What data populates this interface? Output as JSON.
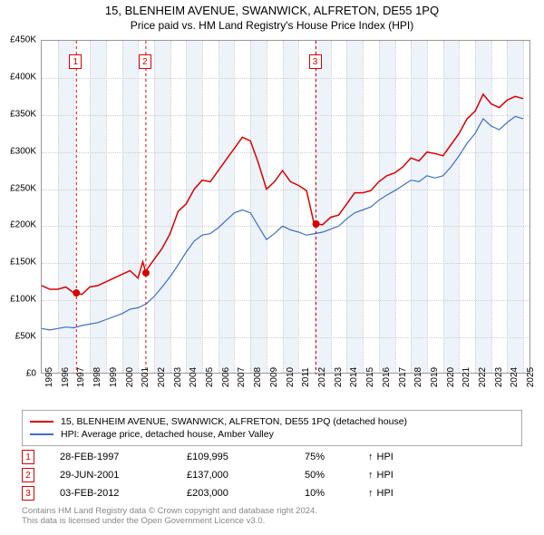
{
  "title": {
    "line1": "15, BLENHEIM AVENUE, SWANWICK, ALFRETON, DE55 1PQ",
    "line2": "Price paid vs. HM Land Registry's House Price Index (HPI)"
  },
  "chart": {
    "type": "line",
    "background_color": "#ffffff",
    "band_color": "#eef3fa",
    "grid_color": "#cccccc",
    "border_color": "#999999",
    "x_years": [
      1995,
      1996,
      1997,
      1998,
      1999,
      2000,
      2001,
      2002,
      2003,
      2004,
      2005,
      2006,
      2007,
      2008,
      2009,
      2010,
      2011,
      2012,
      2013,
      2014,
      2015,
      2016,
      2017,
      2018,
      2019,
      2020,
      2021,
      2022,
      2023,
      2024,
      2025
    ],
    "xlim": [
      1995,
      2025.5
    ],
    "ylim": [
      0,
      450000
    ],
    "ytick_step": 50000,
    "ytick_labels": [
      "£0",
      "£50K",
      "£100K",
      "£150K",
      "£200K",
      "£250K",
      "£300K",
      "£350K",
      "£400K",
      "£450K"
    ],
    "xtick_rotation": -90,
    "tick_fontsize": 10,
    "series": [
      {
        "id": "property",
        "label": "15, BLENHEIM AVENUE, SWANWICK, ALFRETON, DE55 1PQ (detached house)",
        "color": "#d90000",
        "line_width": 1.5,
        "data": [
          [
            1995,
            120000
          ],
          [
            1995.5,
            115000
          ],
          [
            1996,
            115000
          ],
          [
            1996.5,
            118000
          ],
          [
            1997,
            110000
          ],
          [
            1997.16,
            109995
          ],
          [
            1997.5,
            108000
          ],
          [
            1998,
            118000
          ],
          [
            1998.5,
            120000
          ],
          [
            1999,
            125000
          ],
          [
            1999.5,
            130000
          ],
          [
            2000,
            135000
          ],
          [
            2000.5,
            140000
          ],
          [
            2001,
            130000
          ],
          [
            2001.3,
            152000
          ],
          [
            2001.49,
            137000
          ],
          [
            2001.5,
            140000
          ],
          [
            2002,
            155000
          ],
          [
            2002.5,
            170000
          ],
          [
            2003,
            190000
          ],
          [
            2003.5,
            220000
          ],
          [
            2004,
            230000
          ],
          [
            2004.5,
            250000
          ],
          [
            2005,
            262000
          ],
          [
            2005.5,
            260000
          ],
          [
            2006,
            275000
          ],
          [
            2006.5,
            290000
          ],
          [
            2007,
            305000
          ],
          [
            2007.5,
            320000
          ],
          [
            2008,
            315000
          ],
          [
            2008.5,
            285000
          ],
          [
            2009,
            250000
          ],
          [
            2009.5,
            260000
          ],
          [
            2010,
            275000
          ],
          [
            2010.5,
            260000
          ],
          [
            2011,
            255000
          ],
          [
            2011.5,
            248000
          ],
          [
            2012,
            200000
          ],
          [
            2012.09,
            203000
          ],
          [
            2012.5,
            202000
          ],
          [
            2013,
            212000
          ],
          [
            2013.5,
            215000
          ],
          [
            2014,
            230000
          ],
          [
            2014.5,
            245000
          ],
          [
            2015,
            245000
          ],
          [
            2015.5,
            248000
          ],
          [
            2016,
            260000
          ],
          [
            2016.5,
            268000
          ],
          [
            2017,
            272000
          ],
          [
            2017.5,
            280000
          ],
          [
            2018,
            292000
          ],
          [
            2018.5,
            288000
          ],
          [
            2019,
            300000
          ],
          [
            2019.5,
            298000
          ],
          [
            2020,
            295000
          ],
          [
            2020.5,
            310000
          ],
          [
            2021,
            325000
          ],
          [
            2021.5,
            345000
          ],
          [
            2022,
            355000
          ],
          [
            2022.5,
            378000
          ],
          [
            2023,
            365000
          ],
          [
            2023.5,
            360000
          ],
          [
            2024,
            370000
          ],
          [
            2024.5,
            375000
          ],
          [
            2025,
            372000
          ]
        ]
      },
      {
        "id": "hpi",
        "label": "HPI: Average price, detached house, Amber Valley",
        "color": "#3b6fc9",
        "line_width": 1.2,
        "data": [
          [
            1995,
            62000
          ],
          [
            1995.5,
            60000
          ],
          [
            1996,
            62000
          ],
          [
            1996.5,
            64000
          ],
          [
            1997,
            63000
          ],
          [
            1997.5,
            66000
          ],
          [
            1998,
            68000
          ],
          [
            1998.5,
            70000
          ],
          [
            1999,
            74000
          ],
          [
            1999.5,
            78000
          ],
          [
            2000,
            82000
          ],
          [
            2000.5,
            88000
          ],
          [
            2001,
            90000
          ],
          [
            2001.5,
            95000
          ],
          [
            2002,
            105000
          ],
          [
            2002.5,
            118000
          ],
          [
            2003,
            132000
          ],
          [
            2003.5,
            148000
          ],
          [
            2004,
            165000
          ],
          [
            2004.5,
            180000
          ],
          [
            2005,
            188000
          ],
          [
            2005.5,
            190000
          ],
          [
            2006,
            198000
          ],
          [
            2006.5,
            208000
          ],
          [
            2007,
            218000
          ],
          [
            2007.5,
            222000
          ],
          [
            2008,
            218000
          ],
          [
            2008.5,
            200000
          ],
          [
            2009,
            182000
          ],
          [
            2009.5,
            190000
          ],
          [
            2010,
            200000
          ],
          [
            2010.5,
            195000
          ],
          [
            2011,
            192000
          ],
          [
            2011.5,
            188000
          ],
          [
            2012,
            190000
          ],
          [
            2012.5,
            192000
          ],
          [
            2013,
            196000
          ],
          [
            2013.5,
            200000
          ],
          [
            2014,
            210000
          ],
          [
            2014.5,
            218000
          ],
          [
            2015,
            222000
          ],
          [
            2015.5,
            226000
          ],
          [
            2016,
            235000
          ],
          [
            2016.5,
            242000
          ],
          [
            2017,
            248000
          ],
          [
            2017.5,
            255000
          ],
          [
            2018,
            262000
          ],
          [
            2018.5,
            260000
          ],
          [
            2019,
            268000
          ],
          [
            2019.5,
            265000
          ],
          [
            2020,
            268000
          ],
          [
            2020.5,
            280000
          ],
          [
            2021,
            295000
          ],
          [
            2021.5,
            312000
          ],
          [
            2022,
            325000
          ],
          [
            2022.5,
            345000
          ],
          [
            2023,
            335000
          ],
          [
            2023.5,
            330000
          ],
          [
            2024,
            340000
          ],
          [
            2024.5,
            348000
          ],
          [
            2025,
            345000
          ]
        ]
      }
    ],
    "sale_markers": [
      {
        "n": "1",
        "year": 1997.16,
        "price": 109995,
        "color": "#d90000"
      },
      {
        "n": "2",
        "year": 2001.49,
        "price": 137000,
        "color": "#d90000"
      },
      {
        "n": "3",
        "year": 2012.09,
        "price": 203000,
        "color": "#d90000"
      }
    ]
  },
  "legend": {
    "border_color": "#aaaaaa",
    "items": [
      {
        "color": "#d90000",
        "label_ref": "chart.series.0.label"
      },
      {
        "color": "#3b6fc9",
        "label_ref": "chart.series.1.label"
      }
    ]
  },
  "events": [
    {
      "n": "1",
      "color": "#d90000",
      "date": "28-FEB-1997",
      "price": "£109,995",
      "pct": "75%",
      "arrow": "↑",
      "suffix": "HPI"
    },
    {
      "n": "2",
      "color": "#d90000",
      "date": "29-JUN-2001",
      "price": "£137,000",
      "pct": "50%",
      "arrow": "↑",
      "suffix": "HPI"
    },
    {
      "n": "3",
      "color": "#d90000",
      "date": "03-FEB-2012",
      "price": "£203,000",
      "pct": "10%",
      "arrow": "↑",
      "suffix": "HPI"
    }
  ],
  "footer": {
    "line1": "Contains HM Land Registry data © Crown copyright and database right 2024.",
    "line2": "This data is licensed under the Open Government Licence v3.0."
  }
}
